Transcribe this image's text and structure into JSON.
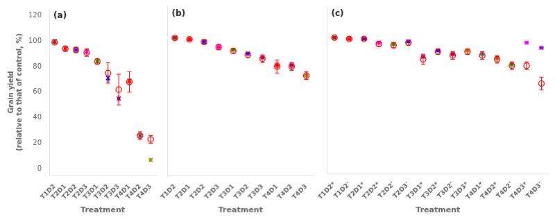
{
  "chart_data": [
    {
      "type": "box",
      "annotation": "(a)",
      "xlabel": "Treatment",
      "ylabel": "Grain yield\n(relative to that of control, %)",
      "categories": [
        "T1D2",
        "T2D1",
        "T2D2",
        "T2D3",
        "T3D1",
        "T3D2",
        "T3D3",
        "T4D1",
        "T4D2",
        "T4D3"
      ],
      "series": [
        {
          "type": "box",
          "colors": [
            "#444444",
            "#ff0000",
            "#0000ff",
            "#ff00ff",
            "#00aa00",
            "#0000ff",
            "#800080",
            "#ff0000",
            "#444444",
            "#999900"
          ],
          "values": [
            99,
            94,
            93,
            91,
            84,
            70,
            55,
            68,
            26,
            7
          ],
          "q1": [
            98.5,
            93.5,
            92.5,
            90.5,
            83.5,
            69,
            54,
            67,
            25,
            6.5
          ],
          "q3": [
            99.5,
            94.5,
            93.5,
            91.5,
            84.5,
            71,
            56,
            69,
            27,
            7.5
          ],
          "whislo": [
            98,
            93,
            92,
            90,
            83,
            68,
            53,
            66,
            24,
            6
          ],
          "whishi": [
            100,
            95,
            94,
            92,
            85,
            72,
            57,
            70,
            28,
            8
          ]
        },
        {
          "type": "scatter",
          "marker": "x",
          "colors": [
            "#444444",
            "#ff0000",
            "#0000ff",
            "#ff00ff",
            "#00aa00",
            "#0000ff",
            "#800080",
            "#ff0000",
            "#444444",
            "#999900"
          ],
          "values": [
            100,
            94,
            93,
            92,
            84,
            71,
            55,
            69,
            26,
            7
          ]
        },
        {
          "type": "scatter",
          "marker": "circle",
          "color": "#ff0000",
          "values": [
            99,
            94,
            93,
            91,
            84,
            75,
            62,
            68,
            26,
            23
          ],
          "error": [
            1,
            2,
            2,
            3,
            2,
            8,
            12,
            8,
            3,
            3
          ]
        }
      ],
      "ylim": [
        -5,
        125
      ],
      "yticks": [
        0,
        20,
        40,
        60,
        80,
        100,
        120
      ],
      "grid": false
    },
    {
      "type": "box",
      "annotation": "(b)",
      "xlabel": "Treatment",
      "tick_labels": "x",
      "categories": [
        "T1D2",
        "T2D1",
        "T2D2",
        "T2D3",
        "T3D1",
        "T3D2",
        "T3D3",
        "T4D1",
        "T4D2",
        "T4D3"
      ],
      "series": [
        {
          "type": "box",
          "colors": [
            "#444444",
            "#ff0000",
            "#0000ff",
            "#ff00ff",
            "#00aa00",
            "#0000ff",
            "#800080",
            "#ff0000",
            "#800080",
            "#999900"
          ],
          "values": [
            101,
            100,
            98,
            94,
            92,
            89,
            86,
            80,
            80,
            72
          ],
          "q1": [
            100.5,
            99.5,
            97.5,
            93.5,
            91.5,
            88.5,
            85.5,
            79,
            79,
            71
          ],
          "q3": [
            101.5,
            100.5,
            98.5,
            94.5,
            92.5,
            89.5,
            86.5,
            81,
            81,
            73
          ],
          "whislo": [
            100,
            99,
            97,
            93,
            91,
            88,
            85,
            78,
            78,
            70
          ],
          "whishi": [
            102,
            101,
            99,
            95,
            93,
            90,
            87,
            82,
            82,
            74
          ]
        },
        {
          "type": "scatter",
          "marker": "x",
          "colors": [
            "#444444",
            "#ff0000",
            "#0000ff",
            "#ff00ff",
            "#00aa00",
            "#0000ff",
            "#800080",
            "#ff0000",
            "#800080",
            "#999900"
          ],
          "values": [
            101,
            100,
            98,
            94,
            92,
            89,
            86,
            80,
            80,
            72
          ]
        },
        {
          "type": "scatter",
          "marker": "circle",
          "color": "#ff0000",
          "values": [
            101,
            100,
            98,
            94,
            91,
            88,
            85,
            79,
            79,
            72
          ],
          "error": [
            1,
            1,
            2,
            2,
            2,
            2,
            3,
            5,
            3,
            3
          ]
        }
      ],
      "ylim": [
        -5,
        125
      ],
      "yticks": [
        0,
        20,
        40,
        60,
        80,
        100,
        120
      ],
      "grid": false
    },
    {
      "type": "box",
      "annotation": "(c)",
      "xlabel": "Treatment",
      "tick_labels": "x",
      "categories": [
        "T1D2*",
        "T1D2'",
        "T2D1*",
        "T2D2*",
        "T2D2'",
        "T2D3'",
        "T3D1*",
        "T3D2*",
        "T3D2'",
        "T3D3*",
        "T4D1*",
        "T4D2*",
        "T4D2'",
        "T4D3*",
        "T4D3'"
      ],
      "series": [
        {
          "type": "box",
          "colors": [
            "#444444",
            "#ff0000",
            "#0000ff",
            "#ff00ff",
            "#00aa00",
            "#0000ff",
            "#800080",
            "#0000ff",
            "#800080",
            "#999900",
            "#00aaaa",
            "#aa6600",
            "#00aa00",
            "#ff00ff",
            "#9900cc"
          ],
          "values": [
            101,
            100,
            100,
            97,
            96,
            98,
            86,
            91,
            88,
            91,
            88,
            85,
            80,
            97,
            93
          ],
          "q1": [
            100.5,
            99.5,
            99.5,
            96.5,
            95.5,
            97.5,
            85.5,
            90.5,
            87.5,
            90.5,
            87.5,
            84.5,
            79.5,
            96.5,
            92.5
          ],
          "q3": [
            101.5,
            100.5,
            100.5,
            97.5,
            96.5,
            98.5,
            86.5,
            91.5,
            88.5,
            91.5,
            88.5,
            85.5,
            80.5,
            97.5,
            93.5
          ],
          "whislo": [
            100,
            99,
            99,
            96,
            95,
            97,
            85,
            90,
            87,
            90,
            87,
            84,
            79,
            96,
            92
          ],
          "whishi": [
            102,
            101,
            101,
            98,
            97,
            99,
            87,
            92,
            89,
            92,
            89,
            86,
            81,
            98,
            94
          ]
        },
        {
          "type": "scatter",
          "marker": "x",
          "colors": [
            "#444444",
            "#ff0000",
            "#0000ff",
            "#ff00ff",
            "#00aa00",
            "#0000ff",
            "#800080",
            "#0000ff",
            "#800080",
            "#999900",
            "#00aaaa",
            "#aa6600",
            "#00aa00",
            "#ff00ff",
            "#9900cc"
          ],
          "values": [
            101,
            100,
            100,
            97,
            96,
            98,
            86,
            91,
            88,
            91,
            88,
            85,
            80,
            97,
            93
          ]
        },
        {
          "type": "scatter",
          "marker": "circle",
          "color": "#ff0000",
          "values": [
            101,
            100,
            100,
            96,
            95,
            97,
            84,
            90,
            87,
            90,
            87,
            84,
            79,
            79,
            65
          ],
          "error": [
            1,
            1,
            1,
            2,
            2,
            2,
            4,
            2,
            3,
            2,
            3,
            3,
            3,
            3,
            5
          ]
        }
      ],
      "ylim": [
        -5,
        125
      ],
      "yticks": [
        0,
        20,
        40,
        60,
        80,
        100,
        120
      ],
      "grid": false
    }
  ]
}
